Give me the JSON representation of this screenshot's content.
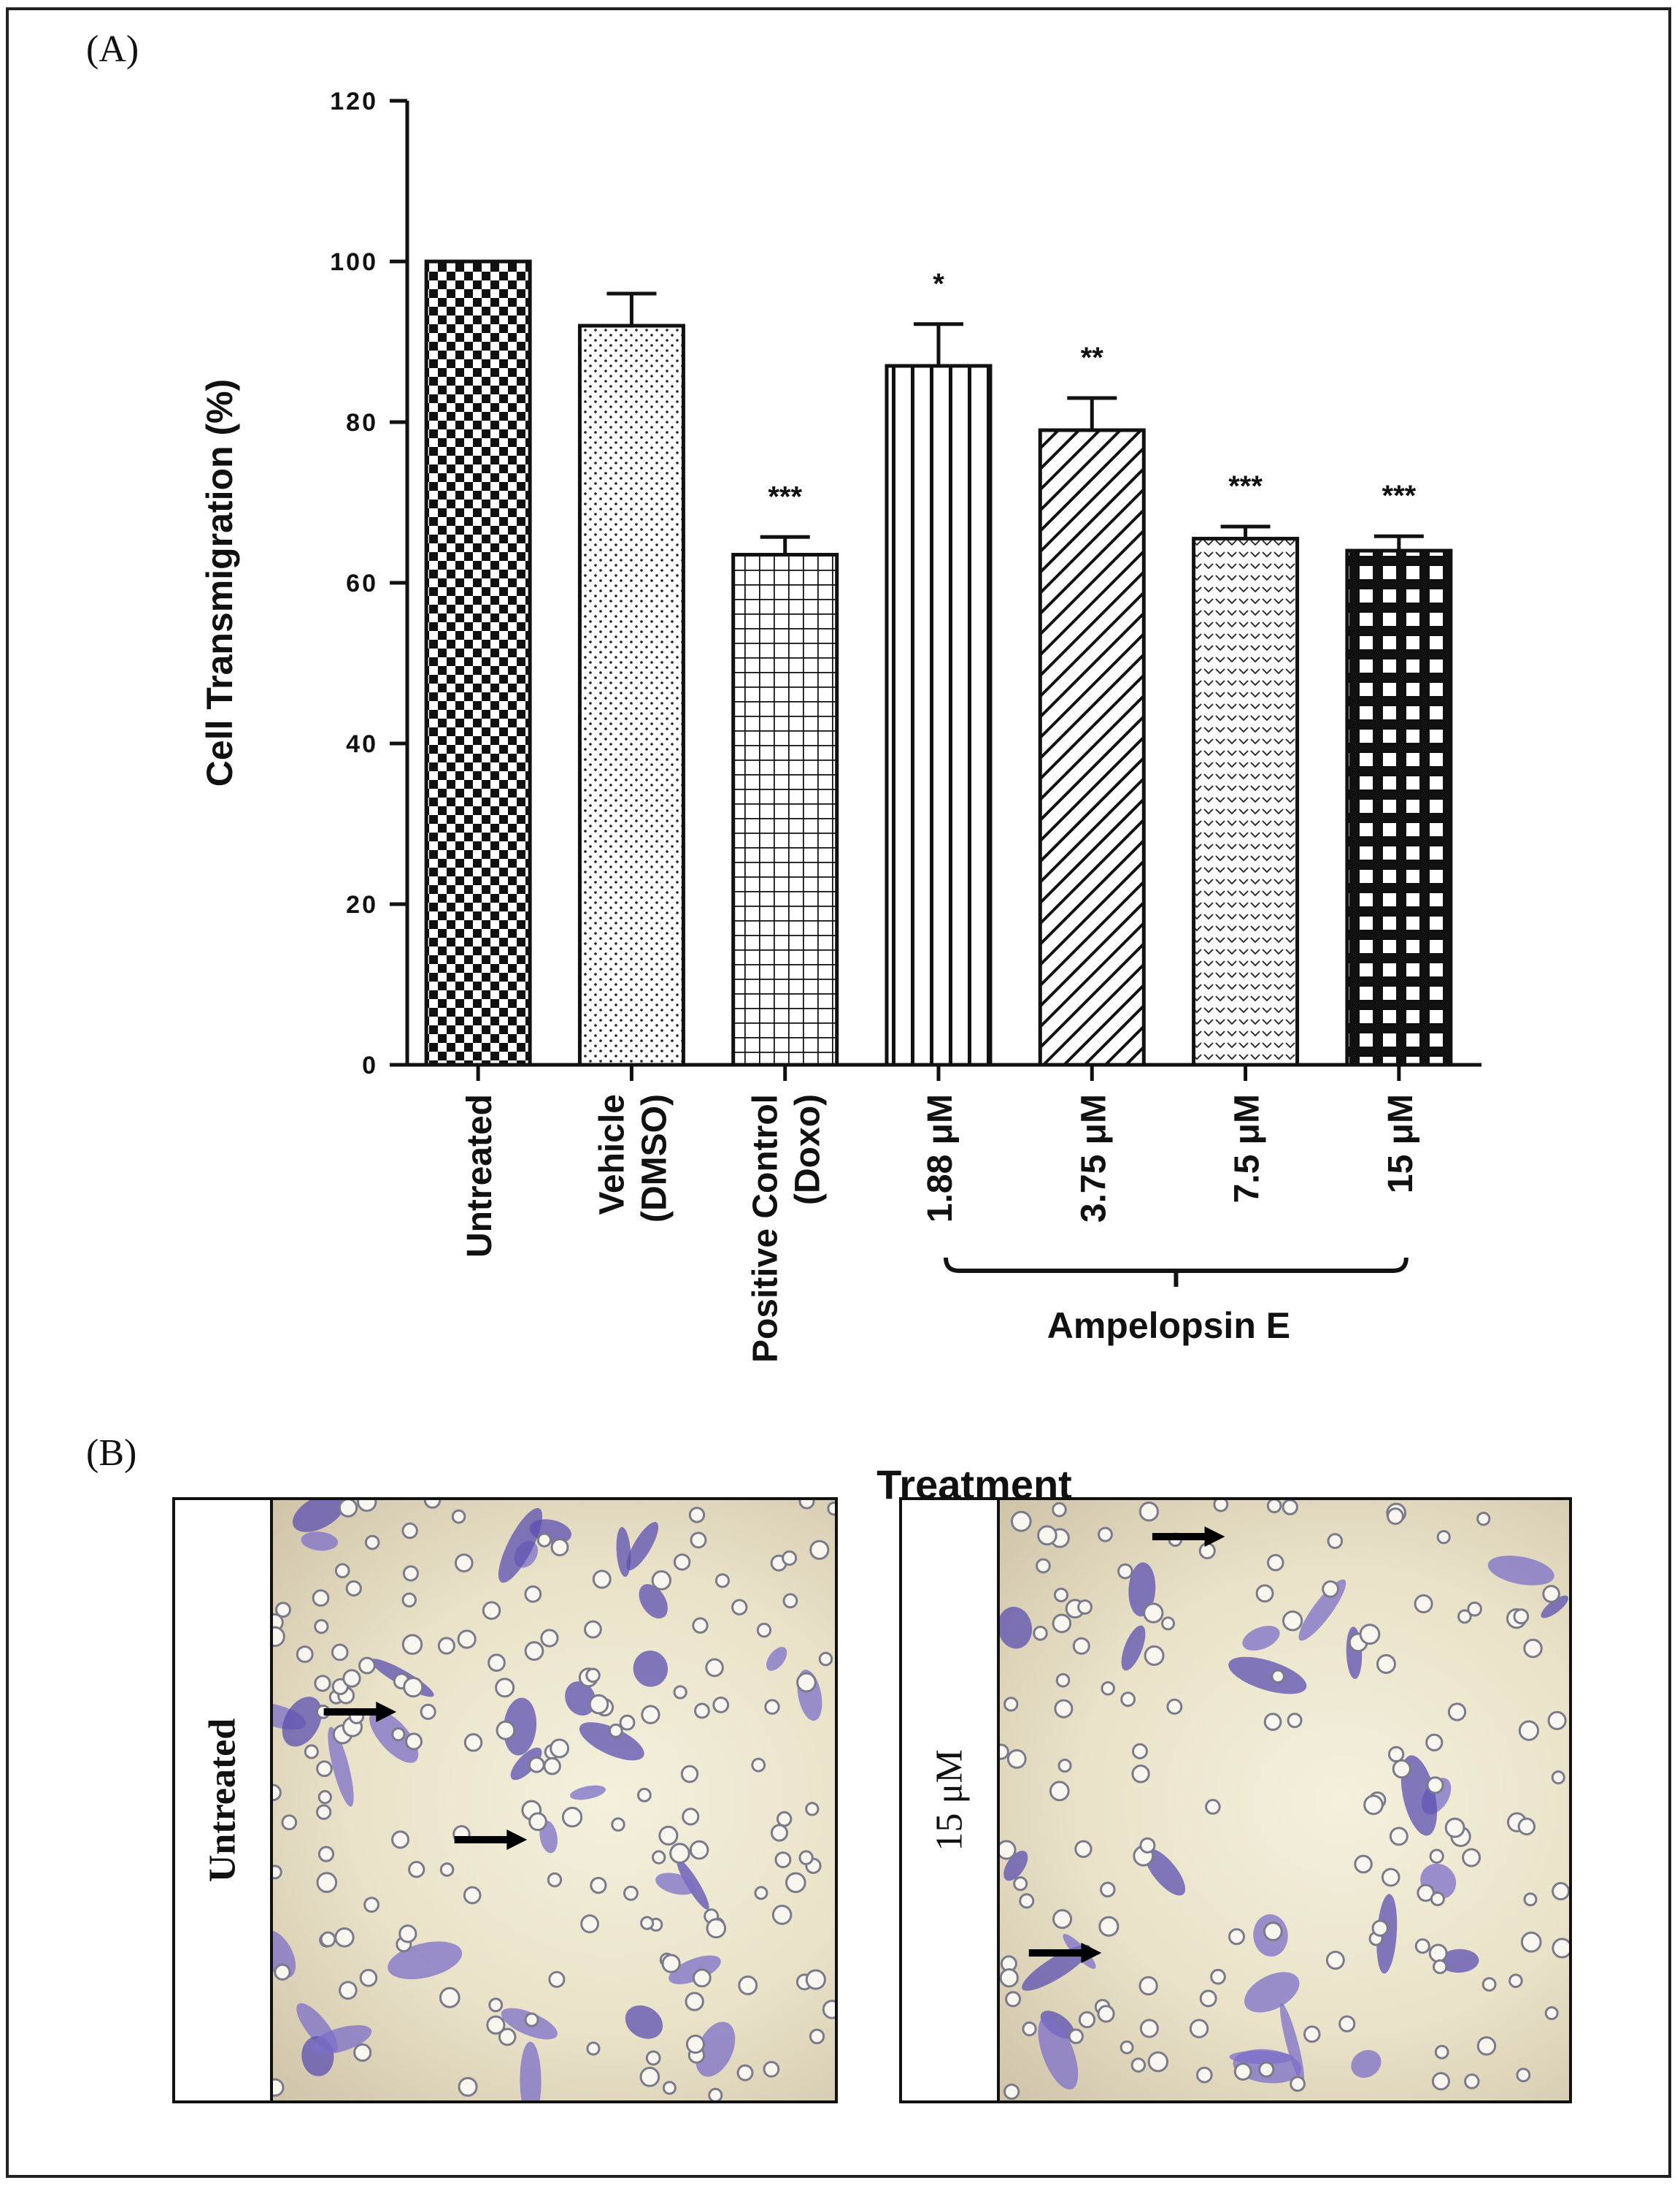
{
  "panel_a_label": "(A)",
  "panel_b_label": "(B)",
  "chart_data": {
    "type": "bar",
    "title": "",
    "xlabel": "Treatment",
    "ylabel": "Cell Transmigration (%)",
    "ylim": [
      0,
      120
    ],
    "yticks": [
      "0",
      "20",
      "40",
      "60",
      "80",
      "100",
      "120"
    ],
    "categories": [
      [
        "Untreated"
      ],
      [
        "Vehicle",
        "(DMSO)"
      ],
      [
        "Positive Control",
        "(Doxo)"
      ],
      [
        "1.88 μM"
      ],
      [
        "3.75 μM"
      ],
      [
        "7.5 μM"
      ],
      [
        "15 μM"
      ]
    ],
    "values": [
      100,
      92,
      63.5,
      87,
      79,
      65.5,
      64
    ],
    "errors": [
      0,
      4,
      2.2,
      5.2,
      4,
      1.5,
      1.8
    ],
    "significance": [
      "",
      "",
      "***",
      "*",
      "**",
      "***",
      "***"
    ],
    "patterns": [
      "checker",
      "dots",
      "grid",
      "vlines",
      "diag",
      "chevron",
      "bigcheck"
    ],
    "group_bracket": {
      "label": "Ampelopsin E",
      "from_index": 3,
      "to_index": 6
    },
    "colors": {
      "ink": "#111111",
      "fill": "#ffffff"
    }
  },
  "micrographs": [
    {
      "label": "Untreated",
      "rotated": true
    },
    {
      "label": "15 μM",
      "rotated": true
    }
  ],
  "colors": {
    "stain": "#7c6fc8",
    "stain_dark": "#5b4fb0",
    "cell_ring": "#7a7a8a"
  }
}
